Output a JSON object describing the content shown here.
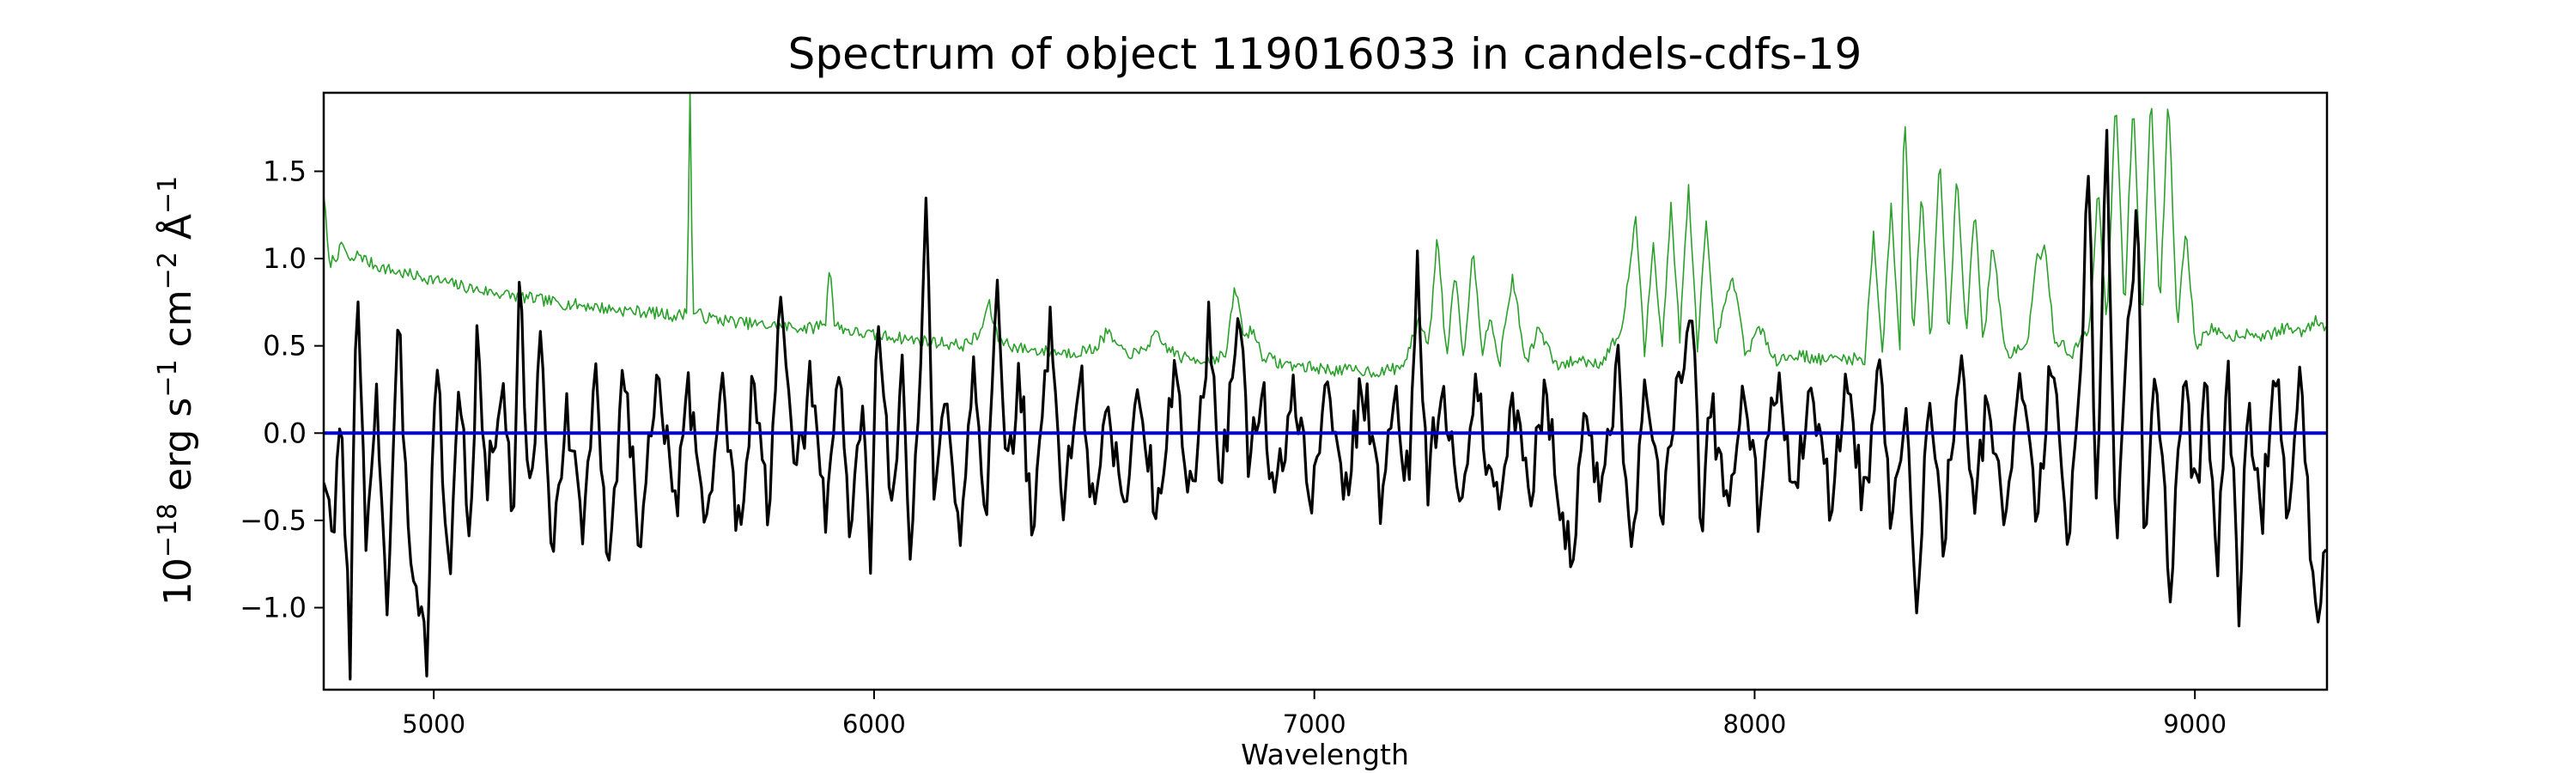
{
  "chart_data": {
    "type": "line",
    "title": "Spectrum of object 119016033 in candels-cdfs-19",
    "xlabel": "Wavelength",
    "ylabel": {
      "prefix": "10",
      "exp": "−18",
      "parts": [
        {
          "t": " erg s",
          "sup": "−1"
        },
        {
          "t": " cm",
          "sup": "−2"
        },
        {
          "t": " Å",
          "sup": "−1"
        }
      ]
    },
    "xlim": [
      4750,
      9300
    ],
    "ylim": [
      -1.47,
      1.95
    ],
    "x_ticks": [
      5000,
      6000,
      7000,
      8000,
      9000
    ],
    "x_tick_labels": [
      "5000",
      "6000",
      "7000",
      "8000",
      "9000"
    ],
    "y_ticks": [
      -1.0,
      -0.5,
      0.0,
      0.5,
      1.0,
      1.5
    ],
    "y_tick_labels": [
      "−1.0",
      "−0.5",
      "0.0",
      "0.5",
      "1.0",
      "1.5"
    ],
    "grid": false,
    "colors": {
      "flux": "#000000",
      "error": "#2ca02c",
      "zero": "#0000cc"
    },
    "series": [
      {
        "key": "flux",
        "step": 6,
        "points": [
          [
            4750,
            -0.2
          ],
          [
            4770,
            -0.7
          ],
          [
            4790,
            0.15
          ],
          [
            4810,
            -1.3
          ],
          [
            4825,
            0.9
          ],
          [
            4845,
            -0.6
          ],
          [
            4870,
            0.25
          ],
          [
            4895,
            -1.05
          ],
          [
            4920,
            0.6
          ],
          [
            4945,
            -0.6
          ],
          [
            4985,
            -1.25
          ],
          [
            5005,
            0.5
          ],
          [
            5035,
            -0.85
          ],
          [
            5060,
            0.35
          ],
          [
            5080,
            -0.7
          ],
          [
            5100,
            0.6
          ],
          [
            5120,
            -0.3
          ],
          [
            5160,
            0.3
          ],
          [
            5180,
            -0.6
          ],
          [
            5195,
            1.05
          ],
          [
            5215,
            -0.5
          ],
          [
            5245,
            0.6
          ],
          [
            5270,
            -0.85
          ],
          [
            5300,
            0.25
          ],
          [
            5335,
            -0.6
          ],
          [
            5370,
            0.35
          ],
          [
            5395,
            -0.9
          ],
          [
            5430,
            0.4
          ],
          [
            5470,
            -0.65
          ],
          [
            5510,
            0.5
          ],
          [
            5545,
            -0.55
          ],
          [
            5580,
            0.25
          ],
          [
            5620,
            -0.5
          ],
          [
            5655,
            0.3
          ],
          [
            5690,
            -0.6
          ],
          [
            5725,
            0.25
          ],
          [
            5760,
            -0.45
          ],
          [
            5790,
            0.8
          ],
          [
            5820,
            -0.35
          ],
          [
            5855,
            0.3
          ],
          [
            5890,
            -0.5
          ],
          [
            5920,
            0.4
          ],
          [
            5945,
            -0.6
          ],
          [
            5975,
            0.25
          ],
          [
            5990,
            -0.8
          ],
          [
            6010,
            0.75
          ],
          [
            6040,
            -0.5
          ],
          [
            6065,
            0.4
          ],
          [
            6080,
            -0.75
          ],
          [
            6105,
            0.3
          ],
          [
            6120,
            1.4
          ],
          [
            6135,
            -0.5
          ],
          [
            6165,
            0.3
          ],
          [
            6195,
            -0.6
          ],
          [
            6225,
            0.45
          ],
          [
            6255,
            -0.45
          ],
          [
            6280,
            0.8
          ],
          [
            6300,
            -0.35
          ],
          [
            6330,
            0.35
          ],
          [
            6360,
            -0.55
          ],
          [
            6400,
            0.6
          ],
          [
            6430,
            -0.4
          ],
          [
            6470,
            0.35
          ],
          [
            6500,
            -0.55
          ],
          [
            6530,
            0.25
          ],
          [
            6565,
            -0.5
          ],
          [
            6600,
            0.3
          ],
          [
            6640,
            -0.45
          ],
          [
            6680,
            0.35
          ],
          [
            6720,
            -0.4
          ],
          [
            6760,
            0.6
          ],
          [
            6790,
            -0.3
          ],
          [
            6830,
            0.8
          ],
          [
            6850,
            -0.2
          ],
          [
            6880,
            0.3
          ],
          [
            6910,
            -0.45
          ],
          [
            6950,
            0.3
          ],
          [
            6990,
            -0.4
          ],
          [
            7030,
            0.25
          ],
          [
            7070,
            -0.35
          ],
          [
            7110,
            0.3
          ],
          [
            7150,
            -0.4
          ],
          [
            7185,
            0.3
          ],
          [
            7215,
            -0.35
          ],
          [
            7235,
            1.0
          ],
          [
            7255,
            -0.3
          ],
          [
            7290,
            0.25
          ],
          [
            7330,
            -0.45
          ],
          [
            7370,
            0.3
          ],
          [
            7410,
            -0.5
          ],
          [
            7450,
            0.25
          ],
          [
            7490,
            -0.4
          ],
          [
            7525,
            0.3
          ],
          [
            7560,
            -0.4
          ],
          [
            7585,
            -0.8
          ],
          [
            7615,
            0.25
          ],
          [
            7650,
            -0.45
          ],
          [
            7690,
            0.35
          ],
          [
            7720,
            -0.8
          ],
          [
            7750,
            0.3
          ],
          [
            7790,
            -0.45
          ],
          [
            7830,
            0.4
          ],
          [
            7860,
            0.75
          ],
          [
            7880,
            -0.6
          ],
          [
            7900,
            0.2
          ],
          [
            7935,
            -0.45
          ],
          [
            7975,
            0.35
          ],
          [
            8010,
            -0.45
          ],
          [
            8050,
            0.3
          ],
          [
            8090,
            -0.35
          ],
          [
            8130,
            0.25
          ],
          [
            8170,
            -0.4
          ],
          [
            8210,
            0.3
          ],
          [
            8250,
            -0.45
          ],
          [
            8280,
            0.5
          ],
          [
            8310,
            -0.55
          ],
          [
            8340,
            0.2
          ],
          [
            8370,
            -0.95
          ],
          [
            8395,
            0.3
          ],
          [
            8430,
            -0.6
          ],
          [
            8470,
            0.55
          ],
          [
            8500,
            -0.45
          ],
          [
            8530,
            0.3
          ],
          [
            8570,
            -0.6
          ],
          [
            8600,
            0.35
          ],
          [
            8640,
            -0.5
          ],
          [
            8675,
            0.45
          ],
          [
            8710,
            -0.6
          ],
          [
            8745,
            0.5
          ],
          [
            8760,
            1.8
          ],
          [
            8775,
            -0.55
          ],
          [
            8800,
            1.7
          ],
          [
            8820,
            -0.65
          ],
          [
            8845,
            0.4
          ],
          [
            8870,
            1.4
          ],
          [
            8885,
            -0.55
          ],
          [
            8910,
            0.35
          ],
          [
            8945,
            -0.85
          ],
          [
            8975,
            0.35
          ],
          [
            9000,
            -0.4
          ],
          [
            9025,
            0.25
          ],
          [
            9050,
            -0.8
          ],
          [
            9075,
            0.35
          ],
          [
            9100,
            -0.95
          ],
          [
            9120,
            0.2
          ],
          [
            9150,
            -0.55
          ],
          [
            9185,
            0.45
          ],
          [
            9215,
            -0.6
          ],
          [
            9240,
            0.4
          ],
          [
            9260,
            -0.6
          ],
          [
            9280,
            -1.05
          ],
          [
            9300,
            -0.55
          ]
        ]
      },
      {
        "key": "error",
        "step": 4,
        "points": [
          [
            4750,
            1.38
          ],
          [
            4762,
            0.97
          ],
          [
            4780,
            1.02
          ],
          [
            4795,
            1.08
          ],
          [
            4810,
            0.97
          ],
          [
            4830,
            1.03
          ],
          [
            4850,
            0.98
          ],
          [
            4880,
            0.95
          ],
          [
            4920,
            0.92
          ],
          [
            4960,
            0.9
          ],
          [
            5000,
            0.88
          ],
          [
            5050,
            0.85
          ],
          [
            5100,
            0.82
          ],
          [
            5150,
            0.8
          ],
          [
            5200,
            0.78
          ],
          [
            5250,
            0.76
          ],
          [
            5300,
            0.74
          ],
          [
            5350,
            0.73
          ],
          [
            5400,
            0.71
          ],
          [
            5450,
            0.7
          ],
          [
            5500,
            0.69
          ],
          [
            5550,
            0.67
          ],
          [
            5575,
            0.69
          ],
          [
            5582,
            1.98
          ],
          [
            5588,
            0.7
          ],
          [
            5620,
            0.66
          ],
          [
            5680,
            0.64
          ],
          [
            5740,
            0.62
          ],
          [
            5800,
            0.61
          ],
          [
            5860,
            0.6
          ],
          [
            5890,
            0.64
          ],
          [
            5900,
            1.0
          ],
          [
            5910,
            0.62
          ],
          [
            5950,
            0.58
          ],
          [
            6000,
            0.56
          ],
          [
            6050,
            0.55
          ],
          [
            6100,
            0.53
          ],
          [
            6150,
            0.52
          ],
          [
            6200,
            0.5
          ],
          [
            6240,
            0.56
          ],
          [
            6260,
            0.75
          ],
          [
            6280,
            0.55
          ],
          [
            6320,
            0.49
          ],
          [
            6380,
            0.47
          ],
          [
            6440,
            0.46
          ],
          [
            6500,
            0.48
          ],
          [
            6530,
            0.58
          ],
          [
            6560,
            0.47
          ],
          [
            6600,
            0.45
          ],
          [
            6640,
            0.56
          ],
          [
            6660,
            0.5
          ],
          [
            6700,
            0.43
          ],
          [
            6760,
            0.42
          ],
          [
            6800,
            0.45
          ],
          [
            6820,
            0.85
          ],
          [
            6840,
            0.55
          ],
          [
            6860,
            0.6
          ],
          [
            6880,
            0.45
          ],
          [
            6920,
            0.4
          ],
          [
            6980,
            0.38
          ],
          [
            7050,
            0.36
          ],
          [
            7100,
            0.36
          ],
          [
            7150,
            0.35
          ],
          [
            7200,
            0.38
          ],
          [
            7240,
            0.65
          ],
          [
            7260,
            0.5
          ],
          [
            7280,
            1.15
          ],
          [
            7300,
            0.42
          ],
          [
            7320,
            0.95
          ],
          [
            7340,
            0.4
          ],
          [
            7360,
            1.1
          ],
          [
            7380,
            0.45
          ],
          [
            7400,
            0.7
          ],
          [
            7420,
            0.38
          ],
          [
            7450,
            0.9
          ],
          [
            7480,
            0.4
          ],
          [
            7510,
            0.6
          ],
          [
            7550,
            0.38
          ],
          [
            7600,
            0.42
          ],
          [
            7650,
            0.4
          ],
          [
            7700,
            0.6
          ],
          [
            7730,
            1.25
          ],
          [
            7750,
            0.45
          ],
          [
            7770,
            1.1
          ],
          [
            7790,
            0.5
          ],
          [
            7810,
            1.3
          ],
          [
            7830,
            0.55
          ],
          [
            7850,
            1.4
          ],
          [
            7870,
            0.5
          ],
          [
            7890,
            1.2
          ],
          [
            7910,
            0.5
          ],
          [
            7950,
            0.9
          ],
          [
            7980,
            0.45
          ],
          [
            8010,
            0.6
          ],
          [
            8050,
            0.42
          ],
          [
            8100,
            0.45
          ],
          [
            8150,
            0.42
          ],
          [
            8200,
            0.43
          ],
          [
            8250,
            0.42
          ],
          [
            8270,
            1.15
          ],
          [
            8290,
            0.45
          ],
          [
            8310,
            1.3
          ],
          [
            8330,
            0.5
          ],
          [
            8340,
            1.9
          ],
          [
            8360,
            0.55
          ],
          [
            8380,
            1.4
          ],
          [
            8400,
            0.5
          ],
          [
            8420,
            1.6
          ],
          [
            8440,
            0.55
          ],
          [
            8460,
            1.5
          ],
          [
            8480,
            0.55
          ],
          [
            8500,
            1.3
          ],
          [
            8520,
            0.5
          ],
          [
            8540,
            1.1
          ],
          [
            8570,
            0.45
          ],
          [
            8620,
            0.5
          ],
          [
            8640,
            1.0
          ],
          [
            8660,
            1.05
          ],
          [
            8680,
            0.55
          ],
          [
            8720,
            0.45
          ],
          [
            8760,
            0.6
          ],
          [
            8780,
            1.4
          ],
          [
            8800,
            0.6
          ],
          [
            8820,
            1.95
          ],
          [
            8840,
            0.7
          ],
          [
            8860,
            1.95
          ],
          [
            8880,
            0.6
          ],
          [
            8900,
            1.95
          ],
          [
            8920,
            0.7
          ],
          [
            8940,
            1.95
          ],
          [
            8960,
            0.6
          ],
          [
            8980,
            1.2
          ],
          [
            9000,
            0.5
          ],
          [
            9040,
            0.6
          ],
          [
            9080,
            0.55
          ],
          [
            9120,
            0.58
          ],
          [
            9160,
            0.55
          ],
          [
            9200,
            0.6
          ],
          [
            9240,
            0.58
          ],
          [
            9280,
            0.65
          ],
          [
            9300,
            0.6
          ]
        ]
      }
    ]
  }
}
